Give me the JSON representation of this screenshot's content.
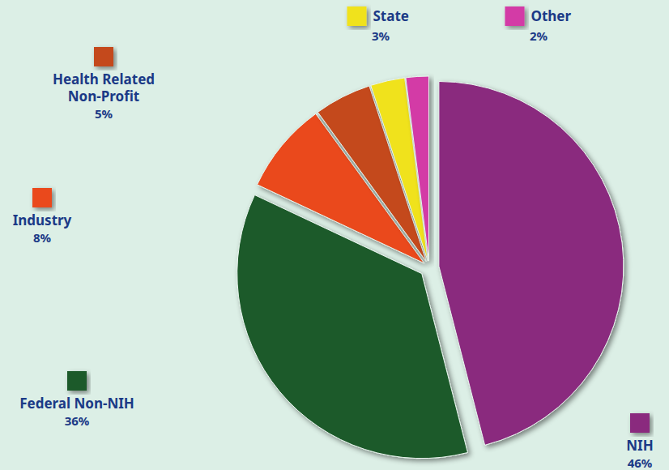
{
  "chart_data": {
    "type": "pie",
    "categories": [
      "NIH",
      "Federal Non-NIH",
      "Industry",
      "Health Related Non-Profit",
      "State",
      "Other"
    ],
    "values": [
      46,
      36,
      8,
      5,
      3,
      2
    ],
    "value_labels": [
      "46%",
      "36%",
      "8%",
      "5%",
      "3%",
      "2%"
    ],
    "colors": [
      "#8a2a7e",
      "#1f5a2c",
      "#ea4a1c",
      "#c4491f",
      "#f0e21e",
      "#d33ba6"
    ],
    "data_labels": true
  }
}
